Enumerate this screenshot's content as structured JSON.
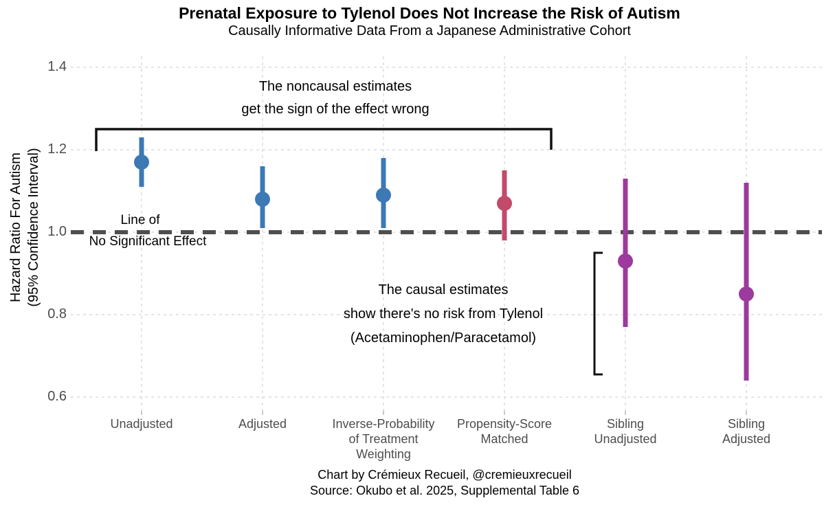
{
  "title": "Prenatal Exposure to Tylenol Does Not Increase the Risk of Autism",
  "subtitle": "Causally Informative Data From a Japanese Administrative Cohort",
  "y_axis": {
    "title_lines": [
      "Hazard Ratio For Autism",
      "(95% Confidence Interval)"
    ],
    "ticks": [
      {
        "label": "1.4",
        "value": 1.4
      },
      {
        "label": "1.2",
        "value": 1.2
      },
      {
        "label": "1.0",
        "value": 1.0
      },
      {
        "label": "0.8",
        "value": 0.8
      },
      {
        "label": "0.6",
        "value": 0.6
      }
    ]
  },
  "reference_line": {
    "value": 1.0,
    "label_lines": [
      "Line of",
      "No Significant Effect"
    ]
  },
  "annotations": {
    "noncausal": {
      "lines": [
        "The noncausal estimates",
        "get the sign of the effect wrong"
      ]
    },
    "causal": {
      "lines": [
        "The causal estimates",
        "show there's no risk from Tylenol",
        "(Acetaminophen/Paracetamol)"
      ]
    }
  },
  "caption_lines": [
    "Chart by Crémieux Recueil, @cremieuxrecueil",
    "Source: Okubo et al. 2025, Supplemental Table 6"
  ],
  "colors": {
    "noncausal": "#3C79B5",
    "matched": "#C24A6B",
    "causal": "#9C3A9D",
    "reference_line": "#4F4F4F",
    "gridline": "#DCDCDC",
    "axis_text": "#4D4D4D",
    "bracket": "#111111"
  },
  "chart_data": {
    "type": "scatter",
    "subtype": "point-estimate-with-95ci-forest",
    "title": "Prenatal Exposure to Tylenol Does Not Increase the Risk of Autism",
    "subtitle": "Causally Informative Data From a Japanese Administrative Cohort",
    "ylabel": "Hazard Ratio For Autism (95% Confidence Interval)",
    "xlabel": "",
    "ylim": [
      0.55,
      1.45
    ],
    "grid": true,
    "reference_value": 1.0,
    "categories": [
      "Unadjusted",
      "Adjusted",
      "Inverse-Probability of Treatment Weighting",
      "Propensity-Score Matched",
      "Sibling Unadjusted",
      "Sibling Adjusted"
    ],
    "points": [
      {
        "category_lines": [
          "Unadjusted"
        ],
        "estimate": 1.17,
        "ci_lower": 1.11,
        "ci_upper": 1.23,
        "color_key": "noncausal"
      },
      {
        "category_lines": [
          "Adjusted"
        ],
        "estimate": 1.08,
        "ci_lower": 1.01,
        "ci_upper": 1.16,
        "color_key": "noncausal"
      },
      {
        "category_lines": [
          "Inverse-Probability",
          "of Treatment",
          "Weighting"
        ],
        "estimate": 1.09,
        "ci_lower": 1.01,
        "ci_upper": 1.18,
        "color_key": "noncausal"
      },
      {
        "category_lines": [
          "Propensity-Score",
          "Matched"
        ],
        "estimate": 1.07,
        "ci_lower": 0.98,
        "ci_upper": 1.15,
        "color_key": "matched"
      },
      {
        "category_lines": [
          "Sibling",
          "Unadjusted"
        ],
        "estimate": 0.93,
        "ci_lower": 0.77,
        "ci_upper": 1.13,
        "color_key": "causal"
      },
      {
        "category_lines": [
          "Sibling",
          "Adjusted"
        ],
        "estimate": 0.85,
        "ci_lower": 0.64,
        "ci_upper": 1.12,
        "color_key": "causal"
      }
    ]
  }
}
